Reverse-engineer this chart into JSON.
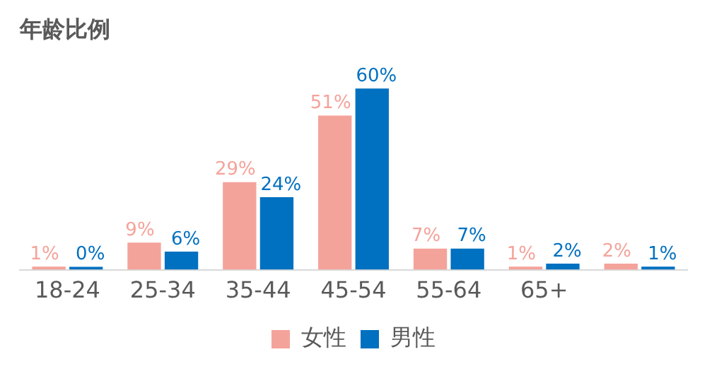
{
  "chart_data": {
    "type": "bar",
    "title": "年龄比例",
    "categories": [
      "18-24",
      "25-34",
      "35-44",
      "45-54",
      "55-64",
      "65+",
      null
    ],
    "series": [
      {
        "name": "女性",
        "color": "#f4a39b",
        "values": [
          1,
          9,
          29,
          51,
          7,
          1,
          2
        ],
        "value_labels": [
          "1%",
          "9%",
          "29%",
          "51%",
          "7%",
          "1%",
          "2%"
        ]
      },
      {
        "name": "男性",
        "color": "#0070c0",
        "values": [
          0,
          6,
          24,
          60,
          7,
          2,
          1
        ],
        "value_labels": [
          "0%",
          "6%",
          "24%",
          "60%",
          "7%",
          "2%",
          "1%"
        ]
      }
    ],
    "legend": "bottom",
    "grid": false
  }
}
